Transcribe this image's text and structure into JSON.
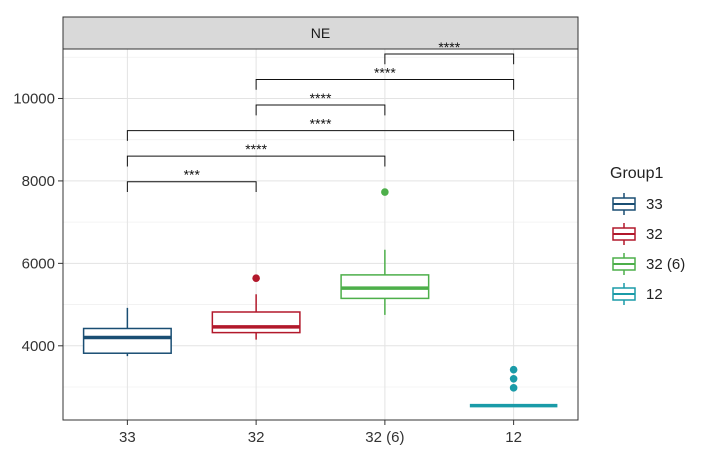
{
  "chart_data": {
    "type": "box",
    "facet_label": "NE",
    "categories": [
      "33",
      "32",
      "32 (6)",
      "12"
    ],
    "ylim": [
      2200,
      11200
    ],
    "yticks": [
      4000,
      6000,
      8000,
      10000
    ],
    "ytick_labels": [
      "4000",
      "6000",
      "8000",
      "10000"
    ],
    "grid": true,
    "legend": {
      "title": "Group1",
      "position": "right"
    },
    "series": [
      {
        "name": "33",
        "color": "#1a4e73",
        "q1": 3820,
        "median": 4200,
        "q3": 4420,
        "whisker_low": 3750,
        "whisker_high": 4920,
        "outliers": []
      },
      {
        "name": "32",
        "color": "#b2182b",
        "q1": 4320,
        "median": 4460,
        "q3": 4820,
        "whisker_low": 4150,
        "whisker_high": 5250,
        "outliers": [
          5640
        ]
      },
      {
        "name": "32 (6)",
        "color": "#4daf4a",
        "q1": 5150,
        "median": 5400,
        "q3": 5720,
        "whisker_low": 4750,
        "whisker_high": 6330,
        "outliers": [
          7730
        ]
      },
      {
        "name": "12",
        "color": "#1a9ba8",
        "q1": 2550,
        "median": 2550,
        "q3": 2550,
        "whisker_low": 2550,
        "whisker_high": 2550,
        "outliers": [
          2980,
          3200,
          3420
        ]
      }
    ],
    "comparisons": [
      {
        "from": 0,
        "to": 1,
        "y": 7980,
        "label": "***"
      },
      {
        "from": 0,
        "to": 2,
        "y": 8600,
        "label": "****"
      },
      {
        "from": 0,
        "to": 3,
        "y": 9220,
        "label": "****"
      },
      {
        "from": 1,
        "to": 2,
        "y": 9840,
        "label": "****"
      },
      {
        "from": 1,
        "to": 3,
        "y": 10460,
        "label": "****"
      },
      {
        "from": 2,
        "to": 3,
        "y": 11080,
        "label": "****"
      }
    ]
  }
}
